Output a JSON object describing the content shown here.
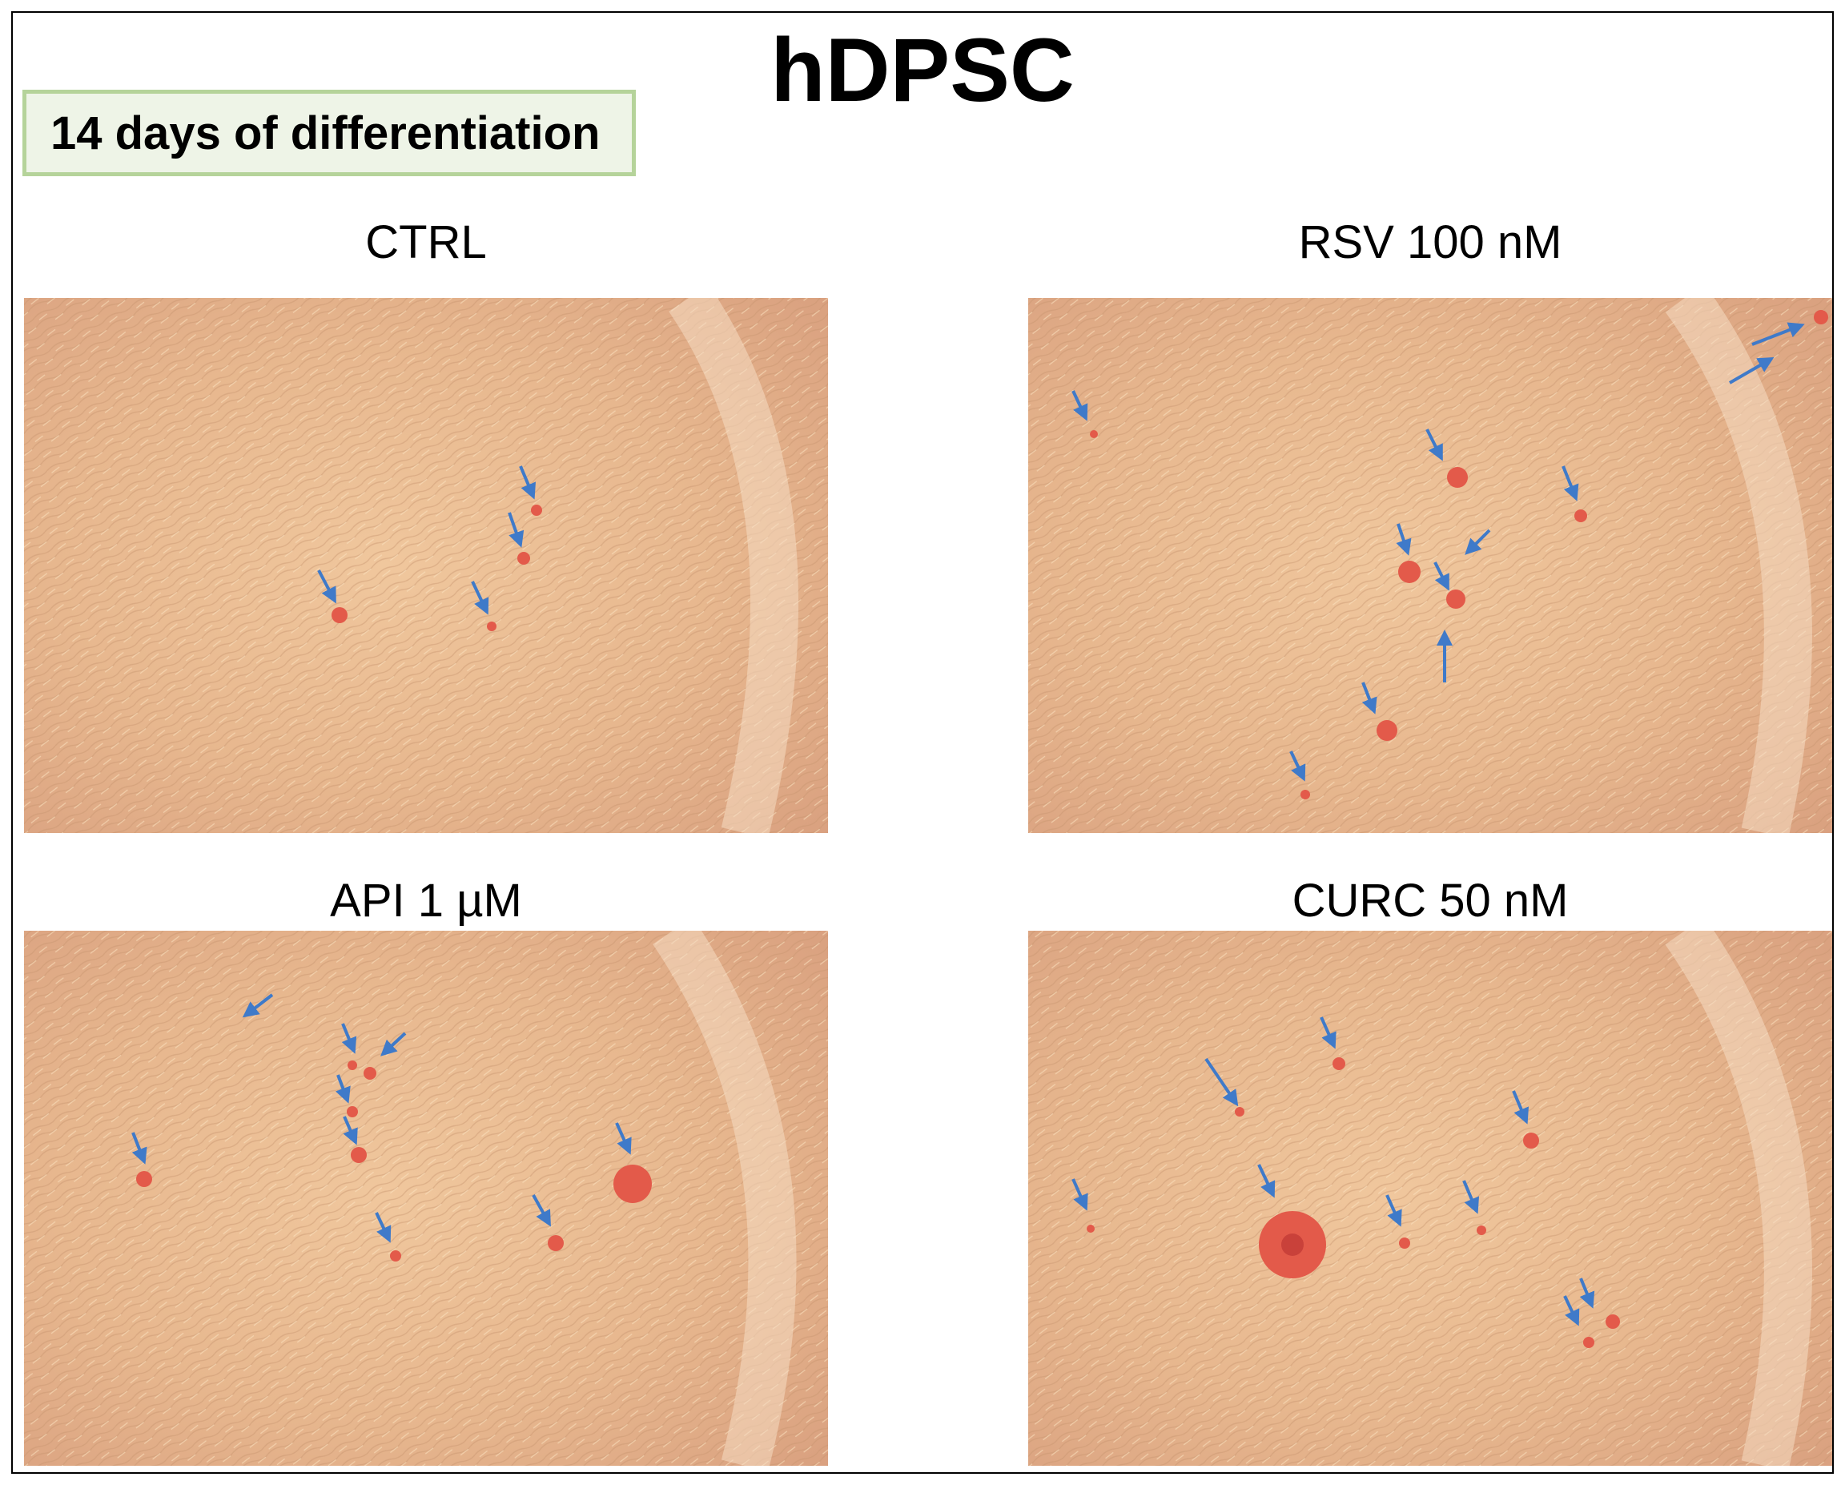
{
  "figure": {
    "title": "hDPSC",
    "subtitle": "14 days of differentiation"
  },
  "panels": [
    {
      "label": "CTRL"
    },
    {
      "label": "RSV 100 nM"
    },
    {
      "label": "API  1 µM"
    },
    {
      "label": "CURC 50 nM"
    }
  ],
  "colors": {
    "cell_background": "#e9b88f",
    "stain_nodule": "#e35a4a",
    "arrow": "#3f7ac9",
    "subtitle_border": "#b5d39a",
    "subtitle_fill": "#eef4e7"
  }
}
